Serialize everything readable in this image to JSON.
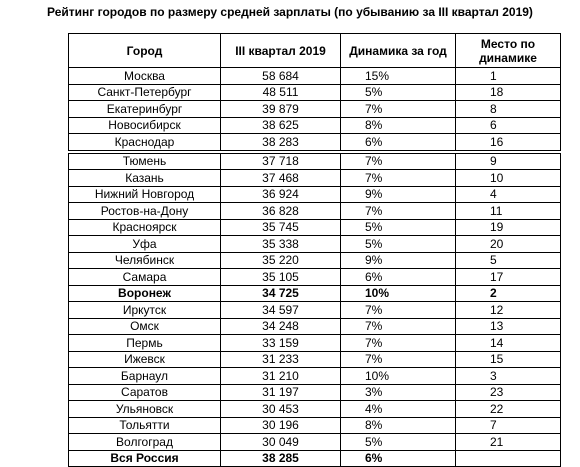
{
  "header": {
    "title": "Рейтинг городов по размеру средней зарплаты (по убыванию за III квартал 2019)"
  },
  "table": {
    "columns": [
      "Город",
      "III квартал 2019",
      "Динамика за год",
      "Место по динамике"
    ],
    "rows": [
      [
        "Москва",
        "58 684",
        "15%",
        "1"
      ],
      [
        "Санкт-Петербург",
        "48 511",
        "5%",
        "18"
      ],
      [
        "Екатеринбург",
        "39 879",
        "7%",
        "8"
      ],
      [
        "Новосибирск",
        "38 625",
        "8%",
        "6"
      ],
      [
        "Краснодар",
        "38 283",
        "6%",
        "16"
      ],
      [
        "Тюмень",
        "37 718",
        "7%",
        "9"
      ],
      [
        "Казань",
        "37 468",
        "7%",
        "10"
      ],
      [
        "Нижний Новгород",
        "36 924",
        "9%",
        "4"
      ],
      [
        "Ростов-на-Дону",
        "36 828",
        "7%",
        "11"
      ],
      [
        "Красноярск",
        "35 745",
        "5%",
        "19"
      ],
      [
        "Уфа",
        "35 338",
        "5%",
        "20"
      ],
      [
        "Челябинск",
        "35 220",
        "9%",
        "5"
      ],
      [
        "Самара",
        "35 105",
        "6%",
        "17"
      ],
      [
        "Воронеж",
        "34 725",
        "10%",
        "2"
      ],
      [
        "Иркутск",
        "34 597",
        "7%",
        "12"
      ],
      [
        "Омск",
        "34 248",
        "7%",
        "13"
      ],
      [
        "Пермь",
        "33 159",
        "7%",
        "14"
      ],
      [
        "Ижевск",
        "31 233",
        "7%",
        "15"
      ],
      [
        "Барнаул",
        "31 210",
        "10%",
        "3"
      ],
      [
        "Саратов",
        "31 197",
        "3%",
        "23"
      ],
      [
        "Ульяновск",
        "30 453",
        "4%",
        "22"
      ],
      [
        "Тольятти",
        "30 196",
        "8%",
        "7"
      ],
      [
        "Волгоград",
        "30 049",
        "5%",
        "21"
      ],
      [
        "Вся Россия",
        "38 285",
        "6%"
      ]
    ]
  }
}
